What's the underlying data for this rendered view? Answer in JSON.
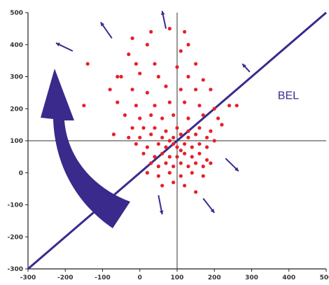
{
  "chart_data": {
    "type": "scatter",
    "title": "",
    "xlabel": "",
    "ylabel": "",
    "xlim": [
      -300,
      500
    ],
    "ylim": [
      -300,
      500
    ],
    "x_ticks": [
      -300,
      -200,
      -100,
      0,
      100,
      200,
      300,
      400,
      500
    ],
    "x_tick_labels": [
      "-300",
      "-200",
      "-100",
      "0",
      "100",
      "200",
      "300",
      "400",
      "500"
    ],
    "y_ticks": [
      -300,
      -200,
      -100,
      0,
      100,
      200,
      300,
      400,
      500
    ],
    "y_tick_labels": [
      "-300",
      "-200",
      "-100",
      "0",
      "100",
      "200",
      "300",
      "400",
      "500"
    ],
    "grid": false,
    "reference_lines": {
      "vertical_x": 100,
      "horizontal_y": 100
    },
    "series": [
      {
        "marker_color": "#e8202a",
        "points": [
          [
            -140,
            340
          ],
          [
            -60,
            300
          ],
          [
            -20,
            420
          ],
          [
            30,
            440
          ],
          [
            80,
            450
          ],
          [
            120,
            440
          ],
          [
            130,
            400
          ],
          [
            110,
            380
          ],
          [
            20,
            400
          ],
          [
            -30,
            370
          ],
          [
            -10,
            340
          ],
          [
            40,
            340
          ],
          [
            100,
            330
          ],
          [
            150,
            340
          ],
          [
            -50,
            300
          ],
          [
            0,
            310
          ],
          [
            50,
            300
          ],
          [
            130,
            300
          ],
          [
            170,
            290
          ],
          [
            -80,
            260
          ],
          [
            -20,
            260
          ],
          [
            20,
            250
          ],
          [
            70,
            270
          ],
          [
            110,
            260
          ],
          [
            150,
            260
          ],
          [
            190,
            260
          ],
          [
            -150,
            210
          ],
          [
            -60,
            220
          ],
          [
            -10,
            210
          ],
          [
            40,
            210
          ],
          [
            80,
            220
          ],
          [
            120,
            220
          ],
          [
            160,
            210
          ],
          [
            200,
            200
          ],
          [
            240,
            210
          ],
          [
            260,
            210
          ],
          [
            -40,
            180
          ],
          [
            0,
            170
          ],
          [
            30,
            180
          ],
          [
            60,
            170
          ],
          [
            90,
            180
          ],
          [
            130,
            170
          ],
          [
            170,
            180
          ],
          [
            210,
            170
          ],
          [
            -20,
            140
          ],
          [
            10,
            140
          ],
          [
            40,
            140
          ],
          [
            70,
            130
          ],
          [
            100,
            140
          ],
          [
            130,
            130
          ],
          [
            160,
            140
          ],
          [
            190,
            130
          ],
          [
            220,
            150
          ],
          [
            -70,
            120
          ],
          [
            -30,
            110
          ],
          [
            0,
            110
          ],
          [
            30,
            120
          ],
          [
            60,
            110
          ],
          [
            90,
            110
          ],
          [
            110,
            120
          ],
          [
            130,
            110
          ],
          [
            150,
            120
          ],
          [
            180,
            110
          ],
          [
            200,
            100
          ],
          [
            -10,
            90
          ],
          [
            20,
            80
          ],
          [
            50,
            90
          ],
          [
            70,
            80
          ],
          [
            80,
            100
          ],
          [
            90,
            90
          ],
          [
            100,
            80
          ],
          [
            110,
            70
          ],
          [
            120,
            90
          ],
          [
            140,
            80
          ],
          [
            160,
            90
          ],
          [
            180,
            80
          ],
          [
            10,
            60
          ],
          [
            40,
            50
          ],
          [
            60,
            60
          ],
          [
            80,
            50
          ],
          [
            100,
            50
          ],
          [
            120,
            60
          ],
          [
            140,
            50
          ],
          [
            160,
            60
          ],
          [
            180,
            40
          ],
          [
            30,
            30
          ],
          [
            50,
            20
          ],
          [
            70,
            30
          ],
          [
            90,
            20
          ],
          [
            110,
            30
          ],
          [
            130,
            20
          ],
          [
            150,
            30
          ],
          [
            170,
            20
          ],
          [
            190,
            30
          ],
          [
            20,
            0
          ],
          [
            50,
            -10
          ],
          [
            80,
            0
          ],
          [
            110,
            -10
          ],
          [
            140,
            0
          ],
          [
            170,
            -10
          ],
          [
            60,
            -40
          ],
          [
            90,
            -30
          ],
          [
            120,
            -40
          ],
          [
            150,
            -60
          ]
        ]
      }
    ],
    "diagonal_line": {
      "from": [
        -300,
        -300
      ],
      "to": [
        500,
        500
      ],
      "color": "#3a2a8c"
    },
    "annotations": [
      {
        "text": "BEL",
        "x": 370,
        "y": 230
      }
    ],
    "direction_arrows": [
      {
        "from": [
          -180,
          380
        ],
        "to": [
          -225,
          405
        ]
      },
      {
        "from": [
          -75,
          420
        ],
        "to": [
          -105,
          470
        ]
      },
      {
        "from": [
          70,
          450
        ],
        "to": [
          60,
          505
        ]
      },
      {
        "from": [
          295,
          315
        ],
        "to": [
          275,
          340
        ]
      },
      {
        "from": [
          230,
          45
        ],
        "to": [
          265,
          5
        ]
      },
      {
        "from": [
          50,
          -70
        ],
        "to": [
          60,
          -130
        ]
      },
      {
        "from": [
          170,
          -80
        ],
        "to": [
          200,
          -125
        ]
      }
    ],
    "big_arrow_color": "#3a2a8c"
  }
}
